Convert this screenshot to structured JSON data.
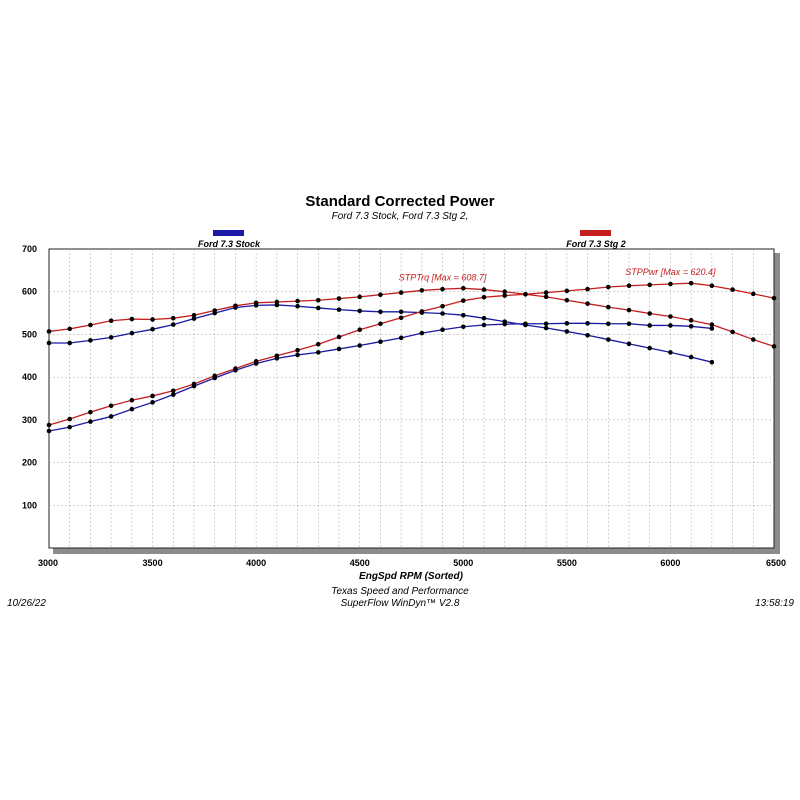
{
  "chart_data": {
    "type": "line",
    "title": "Standard Corrected Power",
    "subtitle": "Ford 7.3 Stock, Ford 7.3 Stg 2,",
    "xlabel": "EngSpd  RPM   (Sorted)",
    "ylabel": "",
    "xlim": [
      3000,
      6500
    ],
    "ylim": [
      0,
      700
    ],
    "xticks": [
      3000,
      3500,
      4000,
      4500,
      5000,
      5500,
      6000,
      6500
    ],
    "yticks": [
      100,
      200,
      300,
      400,
      500,
      600,
      700
    ],
    "grid": true,
    "legend": [
      {
        "label": "Ford 7.3 Stock",
        "color": "#1a1aa6"
      },
      {
        "label": "Ford 7.3 Stg 2",
        "color": "#c41e1e"
      }
    ],
    "annotations": [
      {
        "text": "STPTrq [Max = 608.7]",
        "color": "#c41e1e",
        "x": 4900,
        "y": 608
      },
      {
        "text": "STPPwr [Max = 620.4]",
        "color": "#c41e1e",
        "x": 6000,
        "y": 620
      }
    ],
    "series": [
      {
        "run": "Ford 7.3 Stock",
        "quantity": "STPTrq",
        "color": "#1a1aa6",
        "x": [
          3000,
          3100,
          3200,
          3300,
          3400,
          3500,
          3600,
          3700,
          3800,
          3900,
          4000,
          4100,
          4200,
          4300,
          4400,
          4500,
          4600,
          4700,
          4800,
          4900,
          5000,
          5100,
          5200,
          5300,
          5400,
          5500,
          5600,
          5700,
          5800,
          5900,
          6000,
          6100,
          6200
        ],
        "y": [
          480,
          480,
          486,
          493,
          503,
          512,
          523,
          537,
          550,
          563,
          568,
          569,
          566,
          562,
          558,
          555,
          553,
          553,
          551,
          549,
          545,
          538,
          530,
          522,
          515,
          507,
          498,
          488,
          478,
          468,
          458,
          447,
          435
        ]
      },
      {
        "run": "Ford 7.3 Stock",
        "quantity": "STPPwr",
        "color": "#1a1aa6",
        "x": [
          3000,
          3100,
          3200,
          3300,
          3400,
          3500,
          3600,
          3700,
          3800,
          3900,
          4000,
          4100,
          4200,
          4300,
          4400,
          4500,
          4600,
          4700,
          4800,
          4900,
          5000,
          5100,
          5200,
          5300,
          5400,
          5500,
          5600,
          5700,
          5800,
          5900,
          6000,
          6100,
          6200
        ],
        "y": [
          274,
          283,
          296,
          308,
          325,
          341,
          359,
          379,
          398,
          416,
          432,
          444,
          452,
          458,
          466,
          474,
          483,
          492,
          503,
          511,
          518,
          522,
          524,
          525,
          525,
          526,
          526,
          525,
          525,
          521,
          521,
          519,
          514
        ]
      },
      {
        "run": "Ford 7.3 Stg 2",
        "quantity": "STPTrq",
        "color": "#c41e1e",
        "x": [
          3000,
          3100,
          3200,
          3300,
          3400,
          3500,
          3600,
          3700,
          3800,
          3900,
          4000,
          4100,
          4200,
          4300,
          4400,
          4500,
          4600,
          4700,
          4800,
          4900,
          5000,
          5100,
          5200,
          5300,
          5400,
          5500,
          5600,
          5700,
          5800,
          5900,
          6000,
          6100,
          6200,
          6300,
          6400,
          6500
        ],
        "y": [
          507,
          513,
          522,
          532,
          536,
          535,
          538,
          545,
          556,
          567,
          574,
          576,
          578,
          580,
          584,
          588,
          593,
          598,
          603,
          606,
          608,
          605,
          600,
          594,
          588,
          580,
          572,
          564,
          557,
          549,
          542,
          533,
          523,
          506,
          488,
          472
        ]
      },
      {
        "run": "Ford 7.3 Stg 2",
        "quantity": "STPPwr",
        "color": "#c41e1e",
        "x": [
          3000,
          3100,
          3200,
          3300,
          3400,
          3500,
          3600,
          3700,
          3800,
          3900,
          4000,
          4100,
          4200,
          4300,
          4400,
          4500,
          4600,
          4700,
          4800,
          4900,
          5000,
          5100,
          5200,
          5300,
          5400,
          5500,
          5600,
          5700,
          5800,
          5900,
          6000,
          6100,
          6200,
          6300,
          6400,
          6500
        ],
        "y": [
          288,
          302,
          318,
          333,
          346,
          356,
          368,
          384,
          403,
          420,
          437,
          450,
          463,
          477,
          494,
          511,
          525,
          539,
          554,
          566,
          579,
          587,
          591,
          594,
          598,
          602,
          606,
          611,
          614,
          616,
          618,
          620,
          614,
          605,
          595,
          585
        ]
      }
    ]
  },
  "footer": {
    "date": "10/26/22",
    "time": "13:58:19",
    "shop": "Texas Speed and Performance",
    "software": "SuperFlow WinDyn™  V2.8"
  }
}
